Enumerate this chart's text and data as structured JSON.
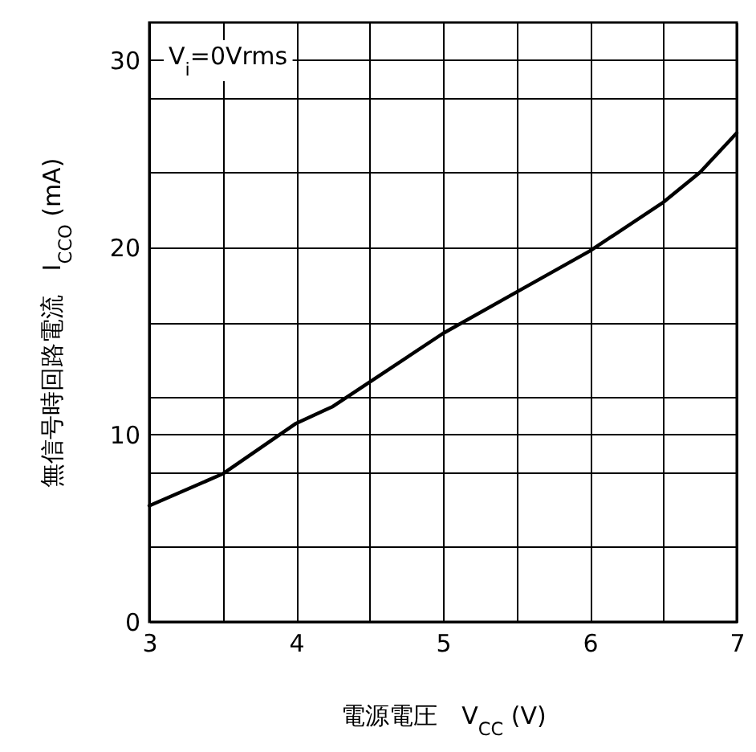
{
  "chart_data": {
    "type": "line",
    "xlabel": "電源電圧　V$_{CC}$ (V)",
    "ylabel": "無信号時回路電流　I$_{CCO}$ (mA)",
    "annotations": [
      "V$_{i}$=0Vrms"
    ],
    "x": [
      3,
      3.5,
      4,
      4.25,
      4.5,
      5,
      5.5,
      6,
      6.5,
      6.75,
      7
    ],
    "series": [
      {
        "color": "#000000",
        "values": [
          6.2,
          7.9,
          10.6,
          11.5,
          12.8,
          15.4,
          17.6,
          19.8,
          22.4,
          24.0,
          26.1
        ]
      }
    ],
    "xlim": [
      3,
      7
    ],
    "xticks": [
      3,
      {
        "value": 3.5,
        "label": null
      },
      4,
      {
        "value": 4.5,
        "label": null
      },
      5,
      {
        "value": 5.5,
        "label": null
      },
      6,
      {
        "value": 6.5,
        "label": null
      },
      7
    ],
    "ylim": [
      0,
      32
    ],
    "yticks": [
      0,
      {
        "value": 4,
        "label": null
      },
      {
        "value": 8,
        "label": null
      },
      10,
      {
        "value": 12,
        "label": null
      },
      {
        "value": 16,
        "label": null
      },
      20,
      {
        "value": 24,
        "label": null
      },
      {
        "value": 28,
        "label": null
      },
      30
    ],
    "grid": true,
    "line_style": "solid",
    "marker": "none"
  }
}
